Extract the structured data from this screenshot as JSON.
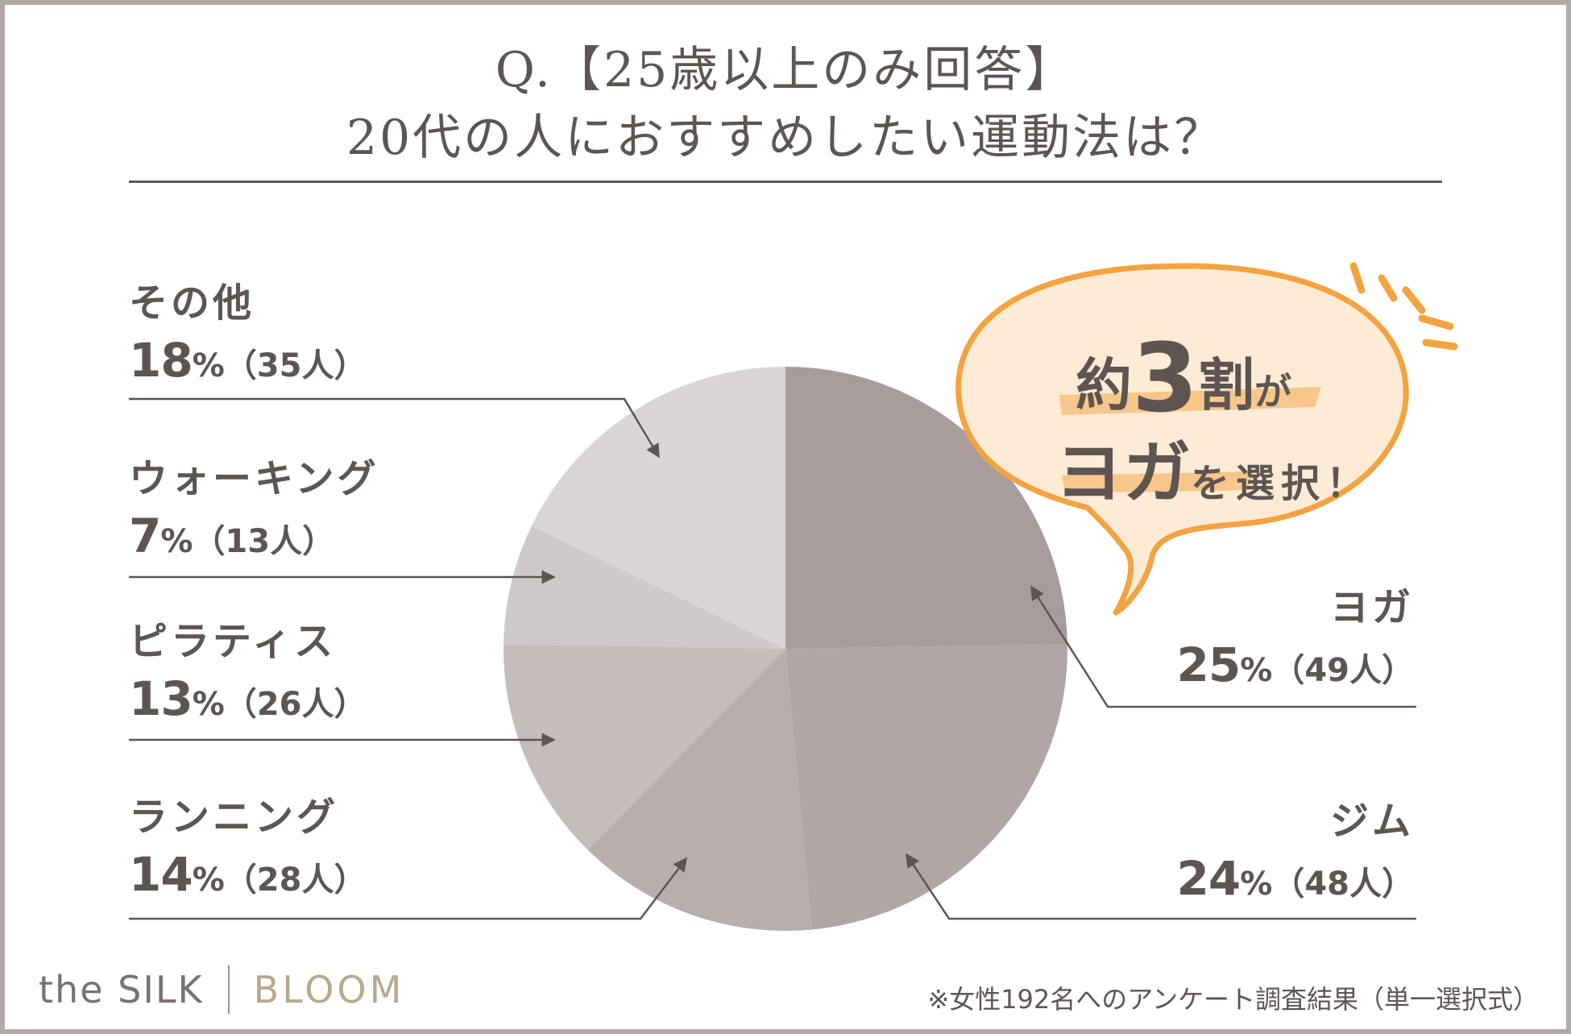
{
  "title": {
    "line1": "Q.【25歳以上のみ回答】",
    "line2": "20代の人におすすめしたい運動法は？"
  },
  "chart_data": {
    "type": "pie",
    "title": "Q.【25歳以上のみ回答】20代の人におすすめしたい運動法は？",
    "total_respondents": 192,
    "slices": [
      {
        "label": "ヨガ",
        "percent": 25,
        "count": 49,
        "color": "#a89b9b"
      },
      {
        "label": "ジム",
        "percent": 24,
        "count": 48,
        "color": "#b1a5a5"
      },
      {
        "label": "ランニング",
        "percent": 14,
        "count": 28,
        "color": "#b8aeae"
      },
      {
        "label": "ピラティス",
        "percent": 13,
        "count": 26,
        "color": "#c5bcbc"
      },
      {
        "label": "ウォーキング",
        "percent": 7,
        "count": 13,
        "color": "#d0c9c9"
      },
      {
        "label": "その他",
        "percent": 18,
        "count": 35,
        "color": "#dad5d5"
      }
    ]
  },
  "labels": {
    "other": {
      "name": "その他",
      "pct": "18",
      "sign": "%",
      "count": "（35人）"
    },
    "walking": {
      "name": "ウォーキング",
      "pct": "7",
      "sign": "%",
      "count": "（13人）"
    },
    "pilates": {
      "name": "ピラティス",
      "pct": "13",
      "sign": "%",
      "count": "（26人）"
    },
    "running": {
      "name": "ランニング",
      "pct": "14",
      "sign": "%",
      "count": "（28人）"
    },
    "yoga": {
      "name": "ヨガ",
      "pct": "25",
      "sign": "%",
      "count": "（49人）"
    },
    "gym": {
      "name": "ジム",
      "pct": "24",
      "sign": "%",
      "count": "（48人）"
    }
  },
  "callout": {
    "about": "約",
    "number": "3",
    "wari": "割",
    "ga": "が",
    "yoga": "ヨガ",
    "rest": "を選択！"
  },
  "footer": {
    "logo_left": "the SILK",
    "logo_right": "BLOOM",
    "note": "※女性192名へのアンケート調査結果（単一選択式）"
  },
  "colors": {
    "text": "#5e5552",
    "accent_orange": "#f3a341",
    "bubble_fill": "#fdebd6",
    "frame": "#b3aaa7"
  }
}
